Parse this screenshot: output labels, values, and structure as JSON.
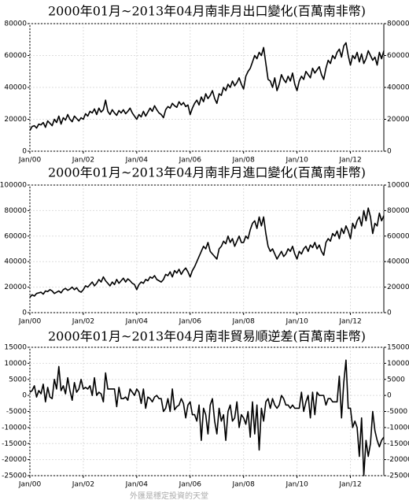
{
  "chart_data": [
    {
      "type": "line",
      "title": "2000年01月~2013年04月南非月出口變化(百萬南非幣)",
      "color": "#000000",
      "grid": true,
      "ylim": [
        0,
        80000
      ],
      "yticks": [
        0,
        20000,
        40000,
        60000,
        80000
      ],
      "categories": [
        "Jan/00",
        null,
        null,
        null,
        null,
        null,
        null,
        null,
        null,
        null,
        null,
        null,
        null,
        null,
        null,
        null,
        null,
        null,
        null,
        null,
        null,
        null,
        null,
        null,
        "Jan/02",
        null,
        null,
        null,
        null,
        null,
        null,
        null,
        null,
        null,
        null,
        null,
        null,
        null,
        null,
        null,
        null,
        null,
        null,
        null,
        null,
        null,
        null,
        null,
        "Jan/04",
        null,
        null,
        null,
        null,
        null,
        null,
        null,
        null,
        null,
        null,
        null,
        null,
        null,
        null,
        null,
        null,
        null,
        null,
        null,
        null,
        null,
        null,
        null,
        "Jan/06",
        null,
        null,
        null,
        null,
        null,
        null,
        null,
        null,
        null,
        null,
        null,
        null,
        null,
        null,
        null,
        null,
        null,
        null,
        null,
        null,
        null,
        null,
        null,
        "Jan/08",
        null,
        null,
        null,
        null,
        null,
        null,
        null,
        null,
        null,
        null,
        null,
        null,
        null,
        null,
        null,
        null,
        null,
        null,
        null,
        null,
        null,
        null,
        null,
        "Jan/10",
        null,
        null,
        null,
        null,
        null,
        null,
        null,
        null,
        null,
        null,
        null,
        null,
        null,
        null,
        null,
        null,
        null,
        null,
        null,
        null,
        null,
        null,
        null,
        "Jan/12",
        null,
        null,
        null,
        null,
        null,
        null,
        null,
        null,
        null,
        null,
        null,
        null,
        null,
        null,
        null
      ],
      "values": [
        13000,
        15500,
        16000,
        14500,
        17000,
        16500,
        18000,
        15000,
        19000,
        17500,
        16000,
        20000,
        18000,
        22000,
        17000,
        21000,
        19500,
        23000,
        20000,
        18500,
        22000,
        20500,
        19000,
        21000,
        20000,
        23500,
        22000,
        25000,
        24000,
        26500,
        23000,
        27000,
        24500,
        26000,
        32000,
        25000,
        23000,
        26000,
        24000,
        22500,
        25500,
        24000,
        26000,
        23500,
        25000,
        27000,
        24000,
        22000,
        20000,
        23000,
        21500,
        25000,
        22000,
        24500,
        27000,
        25000,
        28500,
        26000,
        24000,
        23000,
        21000,
        26000,
        28000,
        27000,
        30000,
        28500,
        27500,
        31000,
        29000,
        30500,
        28000,
        29000,
        23000,
        27000,
        30000,
        32000,
        29000,
        34000,
        31000,
        36000,
        33000,
        35000,
        38000,
        33000,
        30000,
        36000,
        35000,
        40000,
        38000,
        42000,
        40000,
        44000,
        41000,
        43000,
        46000,
        42000,
        39000,
        47000,
        50000,
        52000,
        56000,
        60000,
        58000,
        62000,
        60000,
        65000,
        55000,
        45000,
        44000,
        40000,
        46000,
        38000,
        42000,
        48000,
        45000,
        43000,
        47000,
        44000,
        49000,
        42000,
        38000,
        44000,
        47000,
        45000,
        50000,
        48000,
        46000,
        52000,
        49000,
        51000,
        53000,
        48000,
        45000,
        52000,
        57000,
        55000,
        60000,
        58000,
        62000,
        64000,
        59000,
        66000,
        68000,
        60000,
        54000,
        60000,
        58000,
        62000,
        56000,
        61000,
        55000,
        58000,
        63000,
        60000,
        57000,
        59000,
        54000,
        62000,
        58000,
        63000
      ]
    },
    {
      "type": "line",
      "title": "2000年01月~2013年04月南非月進口變化(百萬南非幣)",
      "color": "#000000",
      "grid": true,
      "ylim": [
        0,
        100000
      ],
      "yticks": [
        0,
        20000,
        40000,
        60000,
        80000,
        100000
      ],
      "categories": [
        "Jan/00",
        null,
        null,
        null,
        null,
        null,
        null,
        null,
        null,
        null,
        null,
        null,
        null,
        null,
        null,
        null,
        null,
        null,
        null,
        null,
        null,
        null,
        null,
        null,
        "Jan/02",
        null,
        null,
        null,
        null,
        null,
        null,
        null,
        null,
        null,
        null,
        null,
        null,
        null,
        null,
        null,
        null,
        null,
        null,
        null,
        null,
        null,
        null,
        null,
        "Jan/04",
        null,
        null,
        null,
        null,
        null,
        null,
        null,
        null,
        null,
        null,
        null,
        null,
        null,
        null,
        null,
        null,
        null,
        null,
        null,
        null,
        null,
        null,
        null,
        "Jan/06",
        null,
        null,
        null,
        null,
        null,
        null,
        null,
        null,
        null,
        null,
        null,
        null,
        null,
        null,
        null,
        null,
        null,
        null,
        null,
        null,
        null,
        null,
        null,
        "Jan/08",
        null,
        null,
        null,
        null,
        null,
        null,
        null,
        null,
        null,
        null,
        null,
        null,
        null,
        null,
        null,
        null,
        null,
        null,
        null,
        null,
        null,
        null,
        null,
        "Jan/10",
        null,
        null,
        null,
        null,
        null,
        null,
        null,
        null,
        null,
        null,
        null,
        null,
        null,
        null,
        null,
        null,
        null,
        null,
        null,
        null,
        null,
        null,
        null,
        "Jan/12",
        null,
        null,
        null,
        null,
        null,
        null,
        null,
        null,
        null,
        null,
        null,
        null,
        null,
        null,
        null
      ],
      "values": [
        12000,
        14000,
        13000,
        15000,
        15500,
        16000,
        14500,
        17000,
        16500,
        18000,
        17000,
        15000,
        16000,
        17000,
        15500,
        18000,
        19000,
        17500,
        18500,
        20000,
        18000,
        19500,
        17000,
        16000,
        18000,
        21000,
        20000,
        22000,
        24000,
        21000,
        23000,
        26000,
        24000,
        28000,
        25000,
        23000,
        21000,
        24000,
        22000,
        26000,
        23000,
        25000,
        27000,
        24000,
        26500,
        25000,
        23000,
        22000,
        18000,
        22000,
        24000,
        23000,
        26000,
        25000,
        28000,
        27000,
        29000,
        26000,
        25000,
        24000,
        26000,
        30000,
        29000,
        32000,
        28000,
        33000,
        31000,
        34000,
        30000,
        33000,
        35000,
        32000,
        28000,
        33000,
        36000,
        40000,
        44000,
        48000,
        52000,
        50000,
        55000,
        48000,
        46000,
        44000,
        42000,
        50000,
        52000,
        56000,
        54000,
        60000,
        55000,
        58000,
        52000,
        56000,
        60000,
        55000,
        55000,
        60000,
        58000,
        65000,
        70000,
        72000,
        66000,
        75000,
        68000,
        75000,
        62000,
        52000,
        48000,
        50000,
        46000,
        42000,
        45000,
        48000,
        44000,
        46000,
        50000,
        48000,
        52000,
        46000,
        42000,
        48000,
        46000,
        50000,
        52000,
        48000,
        53000,
        51000,
        55000,
        50000,
        53000,
        48000,
        45000,
        55000,
        58000,
        56000,
        62000,
        60000,
        64000,
        58000,
        66000,
        62000,
        68000,
        64000,
        58000,
        70000,
        66000,
        72000,
        75000,
        68000,
        80000,
        72000,
        82000,
        75000,
        62000,
        70000,
        68000,
        78000,
        72000,
        76000
      ]
    },
    {
      "type": "line",
      "title": "2000年01月~2013年04月南非貿易順逆差(百萬南非幣)",
      "color": "#000000",
      "grid": true,
      "ylim": [
        -25000,
        15000
      ],
      "yticks": [
        -25000,
        -20000,
        -15000,
        -10000,
        -5000,
        0,
        5000,
        10000,
        15000
      ],
      "categories": [
        "Jan/00",
        null,
        null,
        null,
        null,
        null,
        null,
        null,
        null,
        null,
        null,
        null,
        null,
        null,
        null,
        null,
        null,
        null,
        null,
        null,
        null,
        null,
        null,
        null,
        "Jan/02",
        null,
        null,
        null,
        null,
        null,
        null,
        null,
        null,
        null,
        null,
        null,
        null,
        null,
        null,
        null,
        null,
        null,
        null,
        null,
        null,
        null,
        null,
        null,
        "Jan/04",
        null,
        null,
        null,
        null,
        null,
        null,
        null,
        null,
        null,
        null,
        null,
        null,
        null,
        null,
        null,
        null,
        null,
        null,
        null,
        null,
        null,
        null,
        null,
        "Jan/06",
        null,
        null,
        null,
        null,
        null,
        null,
        null,
        null,
        null,
        null,
        null,
        null,
        null,
        null,
        null,
        null,
        null,
        null,
        null,
        null,
        null,
        null,
        null,
        "Jan/08",
        null,
        null,
        null,
        null,
        null,
        null,
        null,
        null,
        null,
        null,
        null,
        null,
        null,
        null,
        null,
        null,
        null,
        null,
        null,
        null,
        null,
        null,
        null,
        "Jan/10",
        null,
        null,
        null,
        null,
        null,
        null,
        null,
        null,
        null,
        null,
        null,
        null,
        null,
        null,
        null,
        null,
        null,
        null,
        null,
        null,
        null,
        null,
        null,
        "Jan/12",
        null,
        null,
        null,
        null,
        null,
        null,
        null,
        null,
        null,
        null,
        null,
        null,
        null,
        null,
        null
      ],
      "values": [
        1000,
        1500,
        3000,
        -500,
        1500,
        500,
        3500,
        -2000,
        2500,
        -500,
        -1000,
        5000,
        2000,
        9000,
        1500,
        3000,
        500,
        5500,
        1500,
        -1500,
        4000,
        1000,
        2000,
        5000,
        2000,
        2500,
        2000,
        3000,
        0,
        5500,
        0,
        1000,
        500,
        -2000,
        7000,
        2000,
        2000,
        2000,
        2000,
        -3500,
        2500,
        -1000,
        -1000,
        -500,
        -1500,
        2000,
        1000,
        0,
        2000,
        1000,
        -2500,
        2000,
        -4000,
        -500,
        -1000,
        -2000,
        -500,
        0,
        -1000,
        -1000,
        -5000,
        -4000,
        -1000,
        -5000,
        2000,
        -4500,
        -3500,
        -3000,
        -1000,
        -2500,
        -7000,
        -3000,
        -2000,
        -6000,
        -6000,
        -8000,
        -3000,
        -14000,
        -4000,
        -6000,
        -12000,
        -3000,
        -1000,
        -8000,
        -12000,
        -4000,
        -8000,
        -6000,
        -14000,
        -5000,
        -3000,
        -8000,
        -7000,
        -2000,
        -10000,
        -6000,
        -7000,
        -9000,
        -5000,
        -13000,
        -2000,
        -12000,
        -3000,
        -17000,
        -4000,
        -8000,
        -2000,
        -1000,
        -4000,
        -1000,
        -3000,
        -4000,
        -3000,
        0,
        -1000,
        -3000,
        -3000,
        -4000,
        -3000,
        -4000,
        -4000,
        -4000,
        1000,
        -5000,
        -2000,
        0,
        -7000,
        1000,
        -6000,
        1000,
        0,
        0,
        0,
        -3000,
        -1000,
        -1000,
        -2000,
        -2000,
        -2000,
        6000,
        -7000,
        4000,
        11000,
        -4000,
        -4000,
        -10000,
        -8000,
        -10000,
        -19000,
        -7000,
        -25000,
        -14000,
        -19000,
        -15000,
        -5000,
        -11000,
        -14000,
        -16000,
        -14000,
        -13000
      ]
    }
  ],
  "watermark": "外匯是穩定投資的天堂"
}
